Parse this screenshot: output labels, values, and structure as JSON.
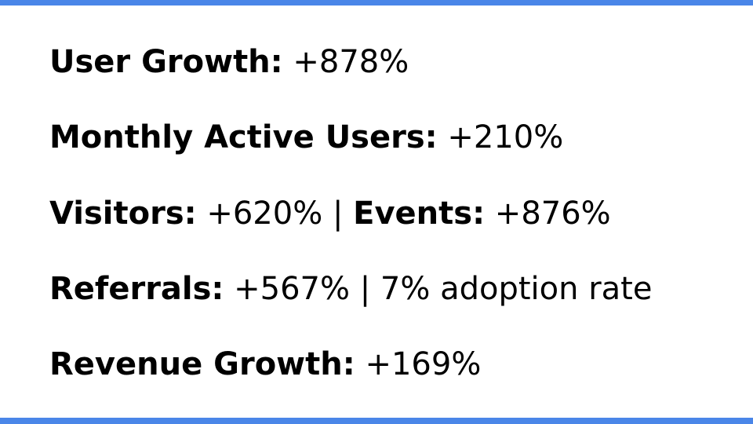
{
  "lines": [
    {
      "items": [
        {
          "label": "User Growth:",
          "value": "+878%"
        }
      ]
    },
    {
      "items": [
        {
          "label": "Monthly Active Users:",
          "value": "+210%"
        }
      ]
    },
    {
      "items": [
        {
          "label": "Visitors:",
          "value": "+620%"
        },
        {
          "label": "Events:",
          "value": "+876%"
        }
      ],
      "separator": "|"
    },
    {
      "items": [
        {
          "label": "Referrals:",
          "value": "+567% | 7% adoption rate"
        }
      ]
    },
    {
      "items": [
        {
          "label": "Revenue Growth:",
          "value": "+169%"
        }
      ]
    }
  ]
}
